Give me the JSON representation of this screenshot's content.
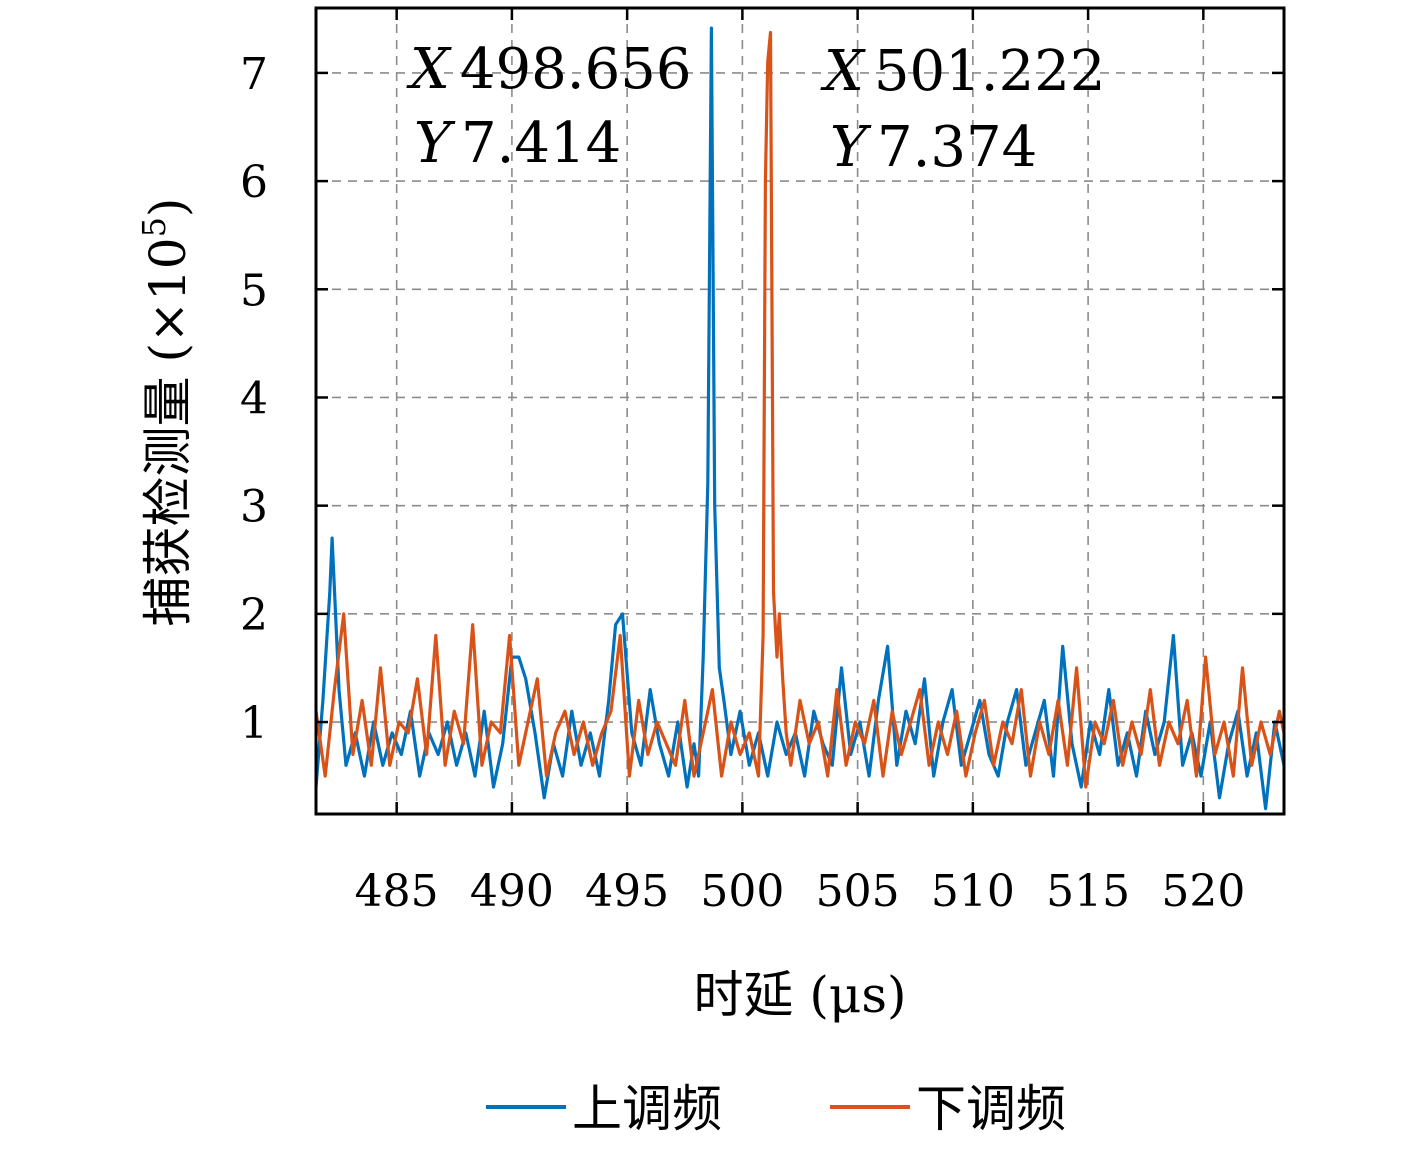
{
  "chart_data": {
    "type": "line",
    "title": "",
    "xlabel": "时延 (μs)",
    "ylabel": "捕获检测量 (×10⁵)",
    "ylabel_main": "捕获检测量",
    "ylabel_unit": "(×10",
    "ylabel_exp": "5",
    "ylabel_close": ")",
    "xlim": [
      481.5,
      523.5
    ],
    "ylim": [
      0.15,
      7.6
    ],
    "xticks": [
      485,
      490,
      495,
      500,
      505,
      510,
      515,
      520
    ],
    "xtick_labels": [
      "485",
      "490",
      "495",
      "500",
      "505",
      "510",
      "515",
      "520"
    ],
    "yticks": [
      1,
      2,
      3,
      4,
      5,
      6,
      7
    ],
    "ytick_labels": [
      "1",
      "2",
      "3",
      "4",
      "5",
      "6",
      "7"
    ],
    "grid": true,
    "legend_position": "bottom",
    "series": [
      {
        "name": "上调频",
        "color": "#0072BD",
        "x": [
          481.5,
          481.8,
          482.1,
          482.2,
          482.5,
          482.8,
          483.2,
          483.6,
          484.0,
          484.4,
          484.8,
          485.2,
          485.6,
          486.0,
          486.4,
          486.8,
          487.2,
          487.6,
          488.0,
          488.4,
          488.8,
          489.2,
          489.6,
          490.0,
          490.3,
          490.6,
          491.0,
          491.4,
          491.8,
          492.2,
          492.6,
          493.0,
          493.4,
          493.8,
          494.2,
          494.5,
          494.8,
          495.2,
          495.6,
          496.0,
          496.4,
          496.8,
          497.2,
          497.6,
          497.9,
          498.1,
          498.3,
          498.5,
          498.656,
          498.8,
          499.0,
          499.2,
          499.5,
          499.9,
          500.3,
          500.7,
          501.1,
          501.5,
          501.9,
          502.3,
          502.7,
          503.1,
          503.5,
          503.9,
          504.3,
          504.7,
          505.1,
          505.5,
          505.9,
          506.3,
          506.7,
          507.1,
          507.5,
          507.9,
          508.3,
          508.7,
          509.1,
          509.5,
          509.9,
          510.3,
          510.7,
          511.1,
          511.5,
          511.9,
          512.3,
          512.7,
          513.1,
          513.5,
          513.9,
          514.3,
          514.7,
          515.1,
          515.5,
          515.9,
          516.3,
          516.7,
          517.1,
          517.5,
          517.9,
          518.3,
          518.7,
          519.1,
          519.5,
          519.9,
          520.3,
          520.7,
          521.1,
          521.5,
          521.9,
          522.3,
          522.7,
          523.1,
          523.5
        ],
        "y": [
          0.4,
          1.2,
          2.2,
          2.7,
          1.3,
          0.6,
          0.9,
          0.5,
          1.0,
          0.6,
          0.9,
          0.7,
          1.1,
          0.5,
          0.9,
          0.7,
          1.0,
          0.6,
          0.9,
          0.5,
          1.1,
          0.4,
          0.8,
          1.6,
          1.6,
          1.4,
          0.9,
          0.3,
          0.8,
          0.5,
          1.1,
          0.6,
          0.9,
          0.5,
          1.2,
          1.9,
          2.0,
          0.9,
          0.6,
          1.3,
          0.8,
          0.5,
          1.0,
          0.4,
          0.8,
          0.5,
          1.6,
          3.2,
          7.414,
          3.0,
          1.5,
          1.2,
          0.7,
          1.1,
          0.6,
          0.9,
          0.5,
          1.0,
          0.7,
          0.9,
          0.5,
          1.1,
          0.8,
          0.6,
          1.5,
          0.7,
          1.0,
          0.5,
          1.2,
          1.7,
          0.6,
          1.1,
          0.8,
          1.4,
          0.5,
          1.0,
          1.3,
          0.6,
          0.9,
          1.2,
          0.7,
          0.5,
          1.0,
          1.3,
          0.6,
          0.9,
          1.2,
          0.5,
          1.7,
          0.8,
          0.4,
          1.0,
          0.7,
          1.3,
          0.6,
          0.9,
          0.5,
          1.1,
          0.7,
          1.0,
          1.8,
          0.6,
          0.9,
          0.5,
          1.0,
          0.3,
          0.8,
          1.1,
          0.5,
          0.9,
          0.2,
          1.0,
          0.6
        ]
      },
      {
        "name": "下调频",
        "color": "#D95319",
        "x": [
          481.5,
          481.9,
          482.3,
          482.7,
          483.1,
          483.5,
          483.9,
          484.3,
          484.7,
          485.1,
          485.5,
          485.9,
          486.3,
          486.7,
          487.1,
          487.5,
          487.9,
          488.3,
          488.7,
          489.1,
          489.5,
          489.9,
          490.3,
          490.7,
          491.1,
          491.5,
          491.9,
          492.3,
          492.7,
          493.1,
          493.5,
          493.9,
          494.3,
          494.7,
          495.1,
          495.5,
          495.9,
          496.3,
          496.7,
          497.1,
          497.5,
          497.9,
          498.3,
          498.7,
          499.1,
          499.5,
          499.9,
          500.3,
          500.7,
          500.9,
          501.0,
          501.1,
          501.222,
          501.35,
          501.5,
          501.6,
          501.75,
          501.9,
          502.1,
          502.5,
          502.9,
          503.3,
          503.7,
          504.1,
          504.5,
          504.9,
          505.3,
          505.7,
          506.1,
          506.5,
          506.9,
          507.3,
          507.7,
          508.1,
          508.5,
          508.9,
          509.3,
          509.7,
          510.1,
          510.5,
          510.9,
          511.3,
          511.7,
          512.1,
          512.5,
          512.9,
          513.3,
          513.7,
          514.1,
          514.5,
          514.9,
          515.3,
          515.7,
          516.1,
          516.5,
          516.9,
          517.3,
          517.7,
          518.1,
          518.5,
          518.9,
          519.3,
          519.7,
          520.1,
          520.5,
          520.9,
          521.3,
          521.7,
          522.1,
          522.5,
          522.9,
          523.3,
          523.5
        ],
        "y": [
          1.1,
          0.5,
          1.3,
          2.0,
          0.7,
          1.2,
          0.6,
          1.5,
          0.6,
          1.0,
          0.9,
          1.4,
          0.7,
          1.8,
          0.6,
          1.1,
          0.8,
          1.9,
          0.6,
          1.0,
          0.9,
          1.8,
          0.6,
          1.0,
          1.4,
          0.5,
          0.9,
          1.1,
          0.7,
          1.0,
          0.6,
          0.9,
          1.1,
          1.8,
          0.5,
          1.2,
          0.7,
          1.0,
          0.8,
          0.6,
          1.2,
          0.5,
          0.9,
          1.3,
          0.5,
          1.0,
          0.7,
          0.9,
          0.5,
          1.8,
          6.0,
          7.1,
          7.374,
          2.2,
          1.6,
          2.0,
          1.4,
          0.9,
          0.6,
          1.2,
          0.8,
          1.0,
          0.5,
          1.3,
          0.6,
          1.0,
          0.8,
          1.2,
          0.5,
          1.1,
          0.7,
          1.0,
          1.3,
          0.6,
          1.0,
          0.7,
          1.1,
          0.5,
          0.9,
          1.2,
          0.6,
          1.0,
          0.8,
          1.3,
          0.5,
          1.0,
          0.7,
          1.2,
          0.6,
          1.5,
          0.4,
          1.0,
          0.8,
          1.2,
          0.6,
          1.0,
          0.7,
          1.3,
          0.6,
          1.0,
          0.8,
          1.2,
          0.5,
          1.6,
          0.7,
          1.0,
          0.5,
          1.5,
          0.6,
          1.0,
          0.7,
          1.1,
          0.9
        ]
      }
    ],
    "annotations": [
      {
        "x_label": "X",
        "x_value": "498.656",
        "y_label": "Y",
        "y_value": "7.414",
        "x": 498.656,
        "y": 7.414
      },
      {
        "x_label": "X",
        "x_value": "501.222",
        "y_label": "Y",
        "y_value": "7.374",
        "x": 501.222,
        "y": 7.374
      }
    ]
  }
}
